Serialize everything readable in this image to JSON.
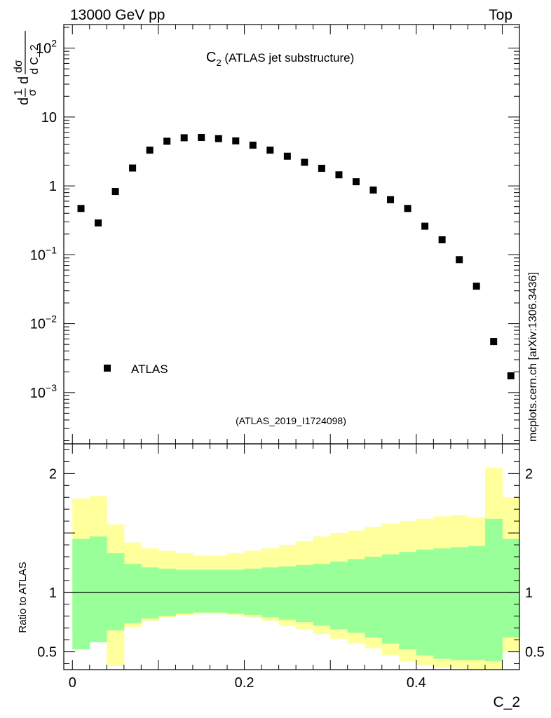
{
  "header": {
    "left": "13000 GeV pp",
    "right": "Top"
  },
  "side_label": "mcplots.cern.ch [arXiv:1306.3436]",
  "chart_data": [
    {
      "type": "scatter",
      "title_main": "C",
      "title_sub": "2",
      "title_rest": " (ATLAS jet substructure)",
      "analysis_tag": "(ATLAS_2019_I1724098)",
      "ylabel_parts": [
        "d",
        "1",
        "σ",
        "d",
        "dσ",
        "d C_2"
      ],
      "yscale": "log",
      "ylim": [
        0.00018,
        220
      ],
      "xlim": [
        -0.01,
        0.52
      ],
      "ytick_labels": [
        {
          "mantissa": "10",
          "exp": "2",
          "value": 100
        },
        {
          "mantissa": "10",
          "exp": "",
          "value": 10
        },
        {
          "mantissa": "1",
          "exp": "",
          "value": 1
        },
        {
          "mantissa": "10",
          "exp": "−1",
          "value": 0.1
        },
        {
          "mantissa": "10",
          "exp": "−2",
          "value": 0.01
        },
        {
          "mantissa": "10",
          "exp": "−3",
          "value": 0.001
        }
      ],
      "legend": {
        "label": "ATLAS",
        "position": "bottom-left"
      },
      "series": [
        {
          "name": "ATLAS",
          "x": [
            0.01,
            0.03,
            0.05,
            0.07,
            0.09,
            0.11,
            0.13,
            0.15,
            0.17,
            0.19,
            0.21,
            0.23,
            0.25,
            0.27,
            0.29,
            0.31,
            0.33,
            0.35,
            0.37,
            0.39,
            0.41,
            0.43,
            0.45,
            0.47,
            0.49,
            0.51
          ],
          "y": [
            0.47,
            0.29,
            0.83,
            1.82,
            3.3,
            4.45,
            5.0,
            5.05,
            4.85,
            4.5,
            3.9,
            3.3,
            2.7,
            2.2,
            1.8,
            1.45,
            1.15,
            0.87,
            0.63,
            0.47,
            0.26,
            0.165,
            0.085,
            0.035,
            0.0055,
            0.00175
          ]
        }
      ]
    },
    {
      "type": "area",
      "ylabel": "Ratio to ATLAS",
      "xlabel": "C_2",
      "ylim": [
        0.35,
        2.25
      ],
      "xlim": [
        -0.01,
        0.52
      ],
      "yticks": [
        0.5,
        1,
        2
      ],
      "ytick_labels": [
        "0.5",
        "1",
        "2"
      ],
      "xticks": [
        0,
        0.2,
        0.4
      ],
      "xtick_labels": [
        "0",
        "0.2",
        "0.4"
      ],
      "reference_line": 1,
      "bin_edges": [
        0,
        0.02,
        0.04,
        0.06,
        0.08,
        0.1,
        0.12,
        0.14,
        0.16,
        0.18,
        0.2,
        0.22,
        0.24,
        0.26,
        0.28,
        0.3,
        0.32,
        0.34,
        0.36,
        0.38,
        0.4,
        0.42,
        0.44,
        0.46,
        0.48,
        0.5,
        0.52
      ],
      "series": [
        {
          "name": "outer band",
          "color": "#ffff9c",
          "upper": [
            1.79,
            1.81,
            1.57,
            1.42,
            1.37,
            1.35,
            1.33,
            1.31,
            1.31,
            1.33,
            1.35,
            1.37,
            1.4,
            1.43,
            1.47,
            1.5,
            1.52,
            1.55,
            1.58,
            1.6,
            1.62,
            1.64,
            1.65,
            1.63,
            2.05,
            1.8
          ],
          "lower": [
            0.68,
            0.67,
            0.38,
            0.71,
            0.76,
            0.79,
            0.81,
            0.82,
            0.82,
            0.81,
            0.79,
            0.76,
            0.72,
            0.69,
            0.65,
            0.61,
            0.57,
            0.53,
            0.47,
            0.42,
            0.39,
            0.37,
            0.36,
            0.35,
            0.35,
            0.5
          ]
        },
        {
          "name": "inner band",
          "color": "#99ff99",
          "upper": [
            1.45,
            1.47,
            1.33,
            1.24,
            1.21,
            1.2,
            1.19,
            1.19,
            1.19,
            1.19,
            1.2,
            1.21,
            1.22,
            1.23,
            1.24,
            1.26,
            1.28,
            1.3,
            1.32,
            1.34,
            1.36,
            1.37,
            1.38,
            1.39,
            1.62,
            1.45
          ],
          "lower": [
            0.52,
            0.58,
            0.68,
            0.74,
            0.78,
            0.8,
            0.82,
            0.83,
            0.83,
            0.82,
            0.81,
            0.79,
            0.77,
            0.75,
            0.72,
            0.69,
            0.66,
            0.62,
            0.57,
            0.52,
            0.47,
            0.44,
            0.43,
            0.43,
            0.42,
            0.62
          ]
        }
      ]
    }
  ]
}
